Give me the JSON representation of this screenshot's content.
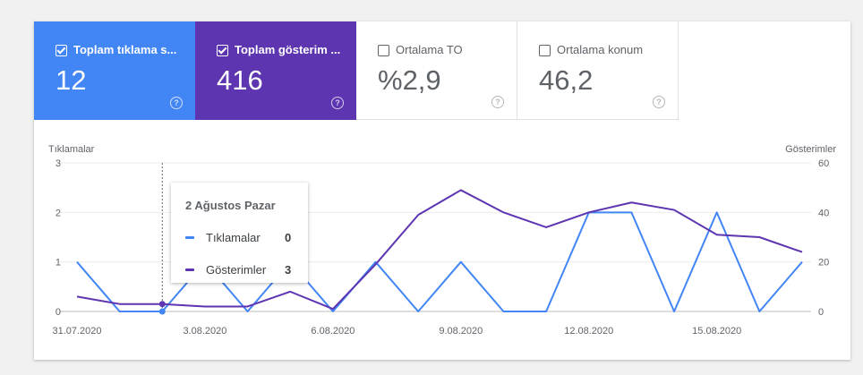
{
  "metrics": [
    {
      "label": "Toplam tıklama s...",
      "value": "12",
      "checked": true,
      "color": "#4285f4"
    },
    {
      "label": "Toplam gösterim ...",
      "value": "416",
      "checked": true,
      "color": "#5e35b1"
    },
    {
      "label": "Ortalama TO",
      "value": "%2,9",
      "checked": false
    },
    {
      "label": "Ortalama konum",
      "value": "46,2",
      "checked": false
    }
  ],
  "help_glyph": "?",
  "chart_data": {
    "type": "line",
    "x": [
      "31.07.2020",
      "01.08.2020",
      "02.08.2020",
      "03.08.2020",
      "04.08.2020",
      "05.08.2020",
      "06.08.2020",
      "07.08.2020",
      "08.08.2020",
      "09.08.2020",
      "10.08.2020",
      "11.08.2020",
      "12.08.2020",
      "13.08.2020",
      "14.08.2020",
      "15.08.2020",
      "16.08.2020",
      "17.08.2020"
    ],
    "x_tick_labels": [
      "31.07.2020",
      "3.08.2020",
      "6.08.2020",
      "9.08.2020",
      "12.08.2020",
      "15.08.2020"
    ],
    "x_tick_indices": [
      0,
      3,
      6,
      9,
      12,
      15
    ],
    "left_axis": {
      "title": "Tıklamalar",
      "ylim": [
        0,
        3
      ],
      "ticks": [
        0,
        1,
        2,
        3
      ]
    },
    "right_axis": {
      "title": "Gösterimler",
      "ylim": [
        0,
        60
      ],
      "ticks": [
        0,
        20,
        40,
        60
      ]
    },
    "series": [
      {
        "name": "Tıklamalar",
        "axis": "left",
        "color": "#4285f4",
        "values": [
          1,
          0,
          0,
          1,
          0,
          1,
          0,
          1,
          0,
          1,
          0,
          0,
          2,
          2,
          0,
          2,
          0,
          1
        ]
      },
      {
        "name": "Gösterimler",
        "axis": "right",
        "color": "#5e35b1",
        "values": [
          6,
          3,
          3,
          2,
          2,
          8,
          1,
          19,
          39,
          49,
          40,
          34,
          40,
          44,
          41,
          31,
          30,
          24
        ]
      }
    ],
    "grid": true,
    "hover_index": 2
  },
  "tooltip": {
    "title": "2 Ağustos Pazar",
    "rows": [
      {
        "label": "Tıklamalar",
        "value": "0",
        "color": "#4285f4"
      },
      {
        "label": "Gösterimler",
        "value": "3",
        "color": "#5e35b1"
      }
    ]
  }
}
